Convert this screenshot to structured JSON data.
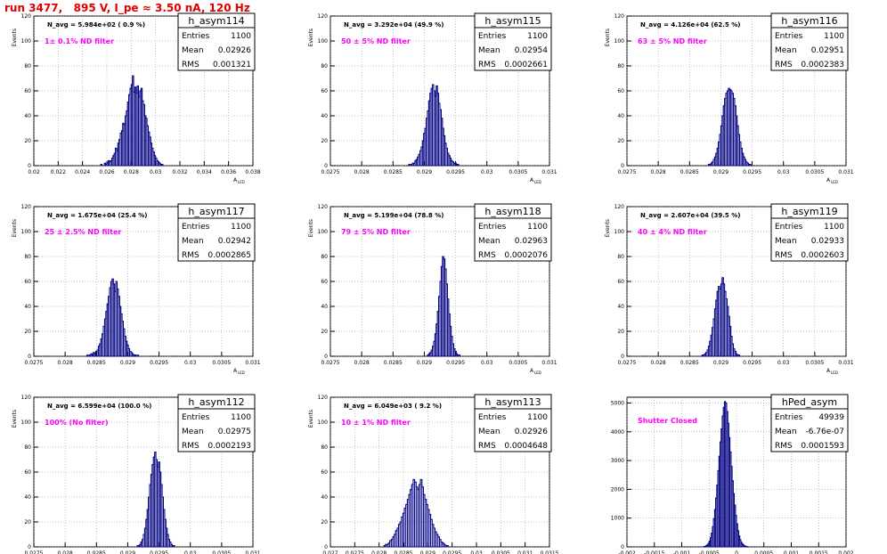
{
  "page": {
    "title": "run 3477,   895 V, I_pe ≈ 3.50 nA, 120 Hz"
  },
  "colors": {
    "title": "#e00000",
    "histogram": "#000080",
    "note": "#ff00ff",
    "grid": "#888888",
    "frame": "#000000"
  },
  "chart_data": [
    {
      "type": "bar",
      "name": "h_asym114",
      "stats": {
        "entries_label": "Entries",
        "entries": "1100",
        "mean_label": "Mean",
        "mean": "0.02926",
        "rms_label": "RMS",
        "rms": "0.001321"
      },
      "avg_label": "N_avg = 5.984e+02 ( 0.9 %)",
      "note": "1± 0.1% ND filter",
      "ylabel": "Events",
      "xlabel": "",
      "xlim": [
        0.02,
        0.038
      ],
      "ylim": [
        0,
        120
      ],
      "xticks": [
        "0.02",
        "0.022",
        "0.024",
        "0.026",
        "0.028",
        "0.03",
        "0.032",
        "0.034",
        "0.036",
        "0.038"
      ],
      "yticks": [
        "0",
        "20",
        "40",
        "60",
        "80",
        "100",
        "120"
      ],
      "bins": {
        "start": 0.0255,
        "width": 0.0001,
        "values": [
          1,
          0,
          0,
          2,
          1,
          2,
          4,
          3,
          4,
          6,
          8,
          10,
          14,
          12,
          18,
          21,
          26,
          28,
          34,
          33,
          40,
          44,
          51,
          57,
          62,
          65,
          72,
          59,
          63,
          58,
          64,
          55,
          60,
          62,
          52,
          49,
          40,
          38,
          32,
          27,
          23,
          18,
          14,
          11,
          8,
          6,
          4,
          3,
          2,
          1,
          1
        ]
      }
    },
    {
      "type": "bar",
      "name": "h_asym115",
      "stats": {
        "entries_label": "Entries",
        "entries": "1100",
        "mean_label": "Mean",
        "mean": "0.02954",
        "rms_label": "RMS",
        "rms": "0.0002661"
      },
      "avg_label": "N_avg = 3.292e+04 (49.9 %)",
      "note": "50 ± 5% ND filter",
      "ylabel": "Events",
      "xlabel": "",
      "xlim": [
        0.0275,
        0.031
      ],
      "ylim": [
        0,
        120
      ],
      "xticks": [
        "0.0275",
        "0.028",
        "0.0285",
        "0.029",
        "0.0295",
        "0.03",
        "0.0305",
        "0.031"
      ],
      "yticks": [
        "0",
        "20",
        "40",
        "60",
        "80",
        "100",
        "120"
      ],
      "bins": {
        "start": 0.02875,
        "width": 2e-05,
        "values": [
          1,
          0,
          1,
          2,
          2,
          4,
          5,
          7,
          9,
          12,
          15,
          20,
          26,
          30,
          38,
          44,
          52,
          58,
          62,
          65,
          60,
          56,
          64,
          58,
          50,
          45,
          38,
          30,
          24,
          18,
          14,
          10,
          8,
          6,
          4,
          3,
          2,
          2,
          1,
          1
        ]
      }
    },
    {
      "type": "bar",
      "name": "h_asym116",
      "stats": {
        "entries_label": "Entries",
        "entries": "1100",
        "mean_label": "Mean",
        "mean": "0.02951",
        "rms_label": "RMS",
        "rms": "0.0002383"
      },
      "avg_label": "N_avg = 4.126e+04 (62.5 %)",
      "note": "63 ± 5% ND filter",
      "ylabel": "Events",
      "xlabel": "",
      "xlim": [
        0.0275,
        0.031
      ],
      "ylim": [
        0,
        120
      ],
      "xticks": [
        "0.0275",
        "0.028",
        "0.0285",
        "0.029",
        "0.0295",
        "0.03",
        "0.0305",
        "0.031"
      ],
      "yticks": [
        "0",
        "20",
        "40",
        "60",
        "80",
        "100",
        "120"
      ],
      "bins": {
        "start": 0.0288,
        "width": 2e-05,
        "values": [
          1,
          1,
          2,
          3,
          5,
          7,
          10,
          14,
          19,
          25,
          32,
          40,
          48,
          54,
          58,
          60,
          62,
          61,
          60,
          58,
          54,
          48,
          40,
          32,
          25,
          19,
          14,
          10,
          7,
          5,
          3,
          2,
          1,
          1
        ]
      }
    },
    {
      "type": "bar",
      "name": "h_asym117",
      "stats": {
        "entries_label": "Entries",
        "entries": "1100",
        "mean_label": "Mean",
        "mean": "0.02942",
        "rms_label": "RMS",
        "rms": "0.0002865"
      },
      "avg_label": "N_avg = 1.675e+04 (25.4 %)",
      "note": "25 ± 2.5% ND filter",
      "ylabel": "Events",
      "xlabel": "",
      "xlim": [
        0.0275,
        0.031
      ],
      "ylim": [
        0,
        120
      ],
      "xticks": [
        "0.0275",
        "0.028",
        "0.0285",
        "0.029",
        "0.0295",
        "0.03",
        "0.0305",
        "0.031"
      ],
      "yticks": [
        "0",
        "20",
        "40",
        "60",
        "80",
        "100",
        "120"
      ],
      "bins": {
        "start": 0.02835,
        "width": 2e-05,
        "values": [
          1,
          0,
          1,
          2,
          1,
          3,
          2,
          4,
          5,
          8,
          10,
          14,
          18,
          24,
          30,
          36,
          42,
          48,
          55,
          60,
          62,
          58,
          52,
          60,
          54,
          48,
          40,
          34,
          28,
          22,
          16,
          12,
          9,
          6,
          4,
          3,
          2,
          1,
          1,
          0,
          1
        ]
      }
    },
    {
      "type": "bar",
      "name": "h_asym118",
      "stats": {
        "entries_label": "Entries",
        "entries": "1100",
        "mean_label": "Mean",
        "mean": "0.02963",
        "rms_label": "RMS",
        "rms": "0.0002076"
      },
      "avg_label": "N_avg = 5.199e+04 (78.8 %)",
      "note": "79 ± 5% ND filter",
      "ylabel": "Events",
      "xlabel": "",
      "xlim": [
        0.0275,
        0.031
      ],
      "ylim": [
        0,
        120
      ],
      "xticks": [
        "0.0275",
        "0.028",
        "0.0285",
        "0.029",
        "0.0295",
        "0.03",
        "0.0305",
        "0.031"
      ],
      "yticks": [
        "0",
        "20",
        "40",
        "60",
        "80",
        "100",
        "120"
      ],
      "bins": {
        "start": 0.02905,
        "width": 2e-05,
        "values": [
          1,
          2,
          3,
          5,
          8,
          12,
          18,
          26,
          36,
          48,
          60,
          72,
          80,
          78,
          70,
          58,
          46,
          34,
          24,
          16,
          10,
          6,
          4,
          2,
          1,
          1
        ]
      }
    },
    {
      "type": "bar",
      "name": "h_asym119",
      "stats": {
        "entries_label": "Entries",
        "entries": "1100",
        "mean_label": "Mean",
        "mean": "0.02933",
        "rms_label": "RMS",
        "rms": "0.0002603"
      },
      "avg_label": "N_avg = 2.607e+04 (39.5 %)",
      "note": "40 ± 4% ND filter",
      "ylabel": "Events",
      "xlabel": "",
      "xlim": [
        0.0275,
        0.031
      ],
      "ylim": [
        0,
        120
      ],
      "xticks": [
        "0.0275",
        "0.028",
        "0.0285",
        "0.029",
        "0.0295",
        "0.03",
        "0.0305",
        "0.031"
      ],
      "yticks": [
        "0",
        "20",
        "40",
        "60",
        "80",
        "100",
        "120"
      ],
      "bins": {
        "start": 0.0287,
        "width": 2e-05,
        "values": [
          1,
          1,
          2,
          3,
          5,
          8,
          12,
          17,
          23,
          30,
          38,
          45,
          52,
          56,
          54,
          58,
          63,
          58,
          52,
          46,
          40,
          32,
          24,
          16,
          10,
          6,
          4,
          2,
          1,
          1
        ]
      }
    },
    {
      "type": "bar",
      "name": "h_asym112",
      "stats": {
        "entries_label": "Entries",
        "entries": "1100",
        "mean_label": "Mean",
        "mean": "0.02975",
        "rms_label": "RMS",
        "rms": "0.0002193"
      },
      "avg_label": "N_avg = 6.599e+04 (100.0 %)",
      "note": "100% (No filter)",
      "ylabel": "Events",
      "xlabel": "",
      "xlim": [
        0.0275,
        0.031
      ],
      "ylim": [
        0,
        120
      ],
      "xticks": [
        "0.0275",
        "0.028",
        "0.0285",
        "0.029",
        "0.0295",
        "0.03",
        "0.0305",
        "0.031"
      ],
      "yticks": [
        "0",
        "20",
        "40",
        "60",
        "80",
        "100",
        "120"
      ],
      "bins": {
        "start": 0.02915,
        "width": 2e-05,
        "values": [
          1,
          1,
          2,
          4,
          6,
          10,
          15,
          22,
          30,
          40,
          50,
          58,
          66,
          72,
          76,
          70,
          64,
          68,
          60,
          50,
          40,
          30,
          22,
          15,
          10,
          6,
          4,
          2,
          1,
          1
        ]
      }
    },
    {
      "type": "bar",
      "name": "h_asym113",
      "stats": {
        "entries_label": "Entries",
        "entries": "1100",
        "mean_label": "Mean",
        "mean": "0.02926",
        "rms_label": "RMS",
        "rms": "0.0004648"
      },
      "avg_label": "N_avg = 6.049e+03 ( 9.2 %)",
      "note": "10 ± 1% ND filter",
      "ylabel": "Events",
      "xlabel": "",
      "xlim": [
        0.027,
        0.0315
      ],
      "ylim": [
        0,
        120
      ],
      "xticks": [
        "0.027",
        "0.0275",
        "0.028",
        "0.0285",
        "0.029",
        "0.0295",
        "0.03",
        "0.0305",
        "0.031",
        "0.0315"
      ],
      "yticks": [
        "0",
        "20",
        "40",
        "60",
        "80",
        "100",
        "120"
      ],
      "bins": {
        "start": 0.0281,
        "width": 3e-05,
        "values": [
          1,
          2,
          2,
          3,
          5,
          6,
          8,
          10,
          13,
          15,
          18,
          20,
          24,
          27,
          31,
          34,
          38,
          42,
          46,
          50,
          54,
          52,
          48,
          46,
          50,
          54,
          48,
          42,
          38,
          34,
          30,
          26,
          22,
          18,
          15,
          12,
          10,
          8,
          6,
          4,
          3,
          2,
          1,
          1
        ]
      }
    },
    {
      "type": "bar",
      "name": "hPed_asym",
      "stats": {
        "entries_label": "Entries",
        "entries": "49939",
        "mean_label": "Mean",
        "mean": "-6.76e-07",
        "rms_label": "RMS",
        "rms": "0.0001593"
      },
      "avg_label": "",
      "note": "Shutter Closed",
      "ylabel": "",
      "xlabel": "",
      "xlim": [
        -0.002,
        0.002
      ],
      "ylim": [
        0,
        5200
      ],
      "xticks": [
        "-0.002",
        "-0.0015",
        "-0.001",
        "-0.0005",
        "0",
        "0.0005",
        "0.001",
        "0.0015",
        "0.002"
      ],
      "yticks": [
        "0",
        "1000",
        "2000",
        "3000",
        "4000",
        "5000"
      ],
      "bins": {
        "start": -0.0006,
        "width": 2e-05,
        "values": [
          10,
          20,
          40,
          70,
          120,
          200,
          320,
          480,
          700,
          980,
          1300,
          1700,
          2150,
          2650,
          3150,
          3650,
          4100,
          4550,
          4850,
          5050,
          5000,
          4700,
          4300,
          3800,
          3300,
          2800,
          2300,
          1850,
          1450,
          1100,
          800,
          560,
          380,
          250,
          160,
          100,
          60,
          35,
          20,
          10
        ]
      }
    }
  ]
}
